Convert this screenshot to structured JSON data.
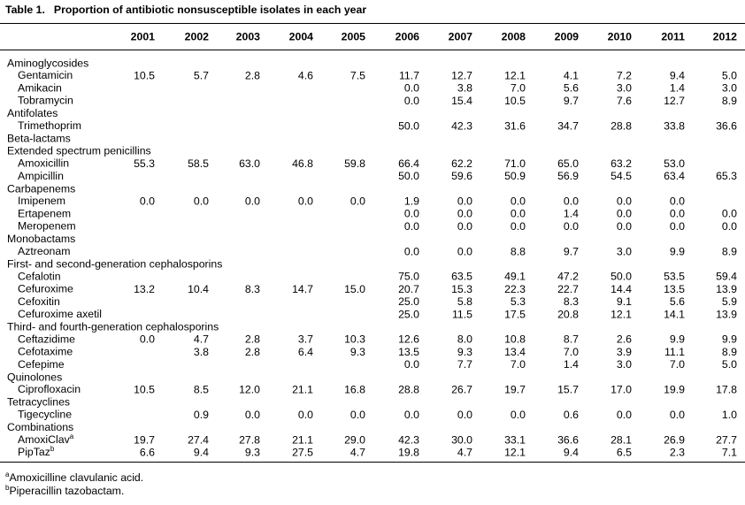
{
  "table": {
    "label": "Table 1.",
    "title": "Proportion of antibiotic nonsusceptible isolates in each year",
    "columns": [
      "2001",
      "2002",
      "2003",
      "2004",
      "2005",
      "2006",
      "2007",
      "2008",
      "2009",
      "2010",
      "2011",
      "2012"
    ],
    "groups": [
      {
        "name": "Aminoglycosides",
        "rows": [
          {
            "label": "Gentamicin",
            "values": [
              "10.5",
              "5.7",
              "2.8",
              "4.6",
              "7.5",
              "11.7",
              "12.7",
              "12.1",
              "4.1",
              "7.2",
              "9.4",
              "5.0"
            ]
          },
          {
            "label": "Amikacin",
            "values": [
              null,
              null,
              null,
              null,
              null,
              "0.0",
              "3.8",
              "7.0",
              "5.6",
              "3.0",
              "1.4",
              "3.0"
            ]
          },
          {
            "label": "Tobramycin",
            "values": [
              null,
              null,
              null,
              null,
              null,
              "0.0",
              "15.4",
              "10.5",
              "9.7",
              "7.6",
              "12.7",
              "8.9"
            ]
          }
        ]
      },
      {
        "name": "Antifolates",
        "rows": [
          {
            "label": "Trimethoprim",
            "values": [
              null,
              null,
              null,
              null,
              null,
              "50.0",
              "42.3",
              "31.6",
              "34.7",
              "28.8",
              "33.8",
              "36.6"
            ]
          }
        ]
      },
      {
        "name": "Beta-lactams",
        "rows": []
      },
      {
        "name": "Extended spectrum penicillins",
        "rows": [
          {
            "label": "Amoxicillin",
            "values": [
              "55.3",
              "58.5",
              "63.0",
              "46.8",
              "59.8",
              "66.4",
              "62.2",
              "71.0",
              "65.0",
              "63.2",
              "53.0",
              null
            ]
          },
          {
            "label": "Ampicillin",
            "values": [
              null,
              null,
              null,
              null,
              null,
              "50.0",
              "59.6",
              "50.9",
              "56.9",
              "54.5",
              "63.4",
              "65.3"
            ]
          }
        ]
      },
      {
        "name": "Carbapenems",
        "rows": [
          {
            "label": "Imipenem",
            "values": [
              "0.0",
              "0.0",
              "0.0",
              "0.0",
              "0.0",
              "1.9",
              "0.0",
              "0.0",
              "0.0",
              "0.0",
              "0.0",
              null
            ]
          },
          {
            "label": "Ertapenem",
            "values": [
              null,
              null,
              null,
              null,
              null,
              "0.0",
              "0.0",
              "0.0",
              "1.4",
              "0.0",
              "0.0",
              "0.0"
            ]
          },
          {
            "label": "Meropenem",
            "values": [
              null,
              null,
              null,
              null,
              null,
              "0.0",
              "0.0",
              "0.0",
              "0.0",
              "0.0",
              "0.0",
              "0.0"
            ]
          }
        ]
      },
      {
        "name": "Monobactams",
        "rows": [
          {
            "label": "Aztreonam",
            "values": [
              null,
              null,
              null,
              null,
              null,
              "0.0",
              "0.0",
              "8.8",
              "9.7",
              "3.0",
              "9.9",
              "8.9"
            ]
          }
        ]
      },
      {
        "name": "First- and second-generation cephalosporins",
        "rows": [
          {
            "label": "Cefalotin",
            "values": [
              null,
              null,
              null,
              null,
              null,
              "75.0",
              "63.5",
              "49.1",
              "47.2",
              "50.0",
              "53.5",
              "59.4"
            ]
          },
          {
            "label": "Cefuroxime",
            "values": [
              "13.2",
              "10.4",
              "8.3",
              "14.7",
              "15.0",
              "20.7",
              "15.3",
              "22.3",
              "22.7",
              "14.4",
              "13.5",
              "13.9"
            ]
          },
          {
            "label": "Cefoxitin",
            "values": [
              null,
              null,
              null,
              null,
              null,
              "25.0",
              "5.8",
              "5.3",
              "8.3",
              "9.1",
              "5.6",
              "5.9"
            ]
          },
          {
            "label": "Cefuroxime axetil",
            "values": [
              null,
              null,
              null,
              null,
              null,
              "25.0",
              "11.5",
              "17.5",
              "20.8",
              "12.1",
              "14.1",
              "13.9"
            ]
          }
        ]
      },
      {
        "name": "Third- and fourth-generation cephalosporins",
        "rows": [
          {
            "label": "Ceftazidime",
            "values": [
              "0.0",
              "4.7",
              "2.8",
              "3.7",
              "10.3",
              "12.6",
              "8.0",
              "10.8",
              "8.7",
              "2.6",
              "9.9",
              "9.9"
            ]
          },
          {
            "label": "Cefotaxime",
            "values": [
              null,
              "3.8",
              "2.8",
              "6.4",
              "9.3",
              "13.5",
              "9.3",
              "13.4",
              "7.0",
              "3.9",
              "11.1",
              "8.9"
            ]
          },
          {
            "label": "Cefepime",
            "values": [
              null,
              null,
              null,
              null,
              null,
              "0.0",
              "7.7",
              "7.0",
              "1.4",
              "3.0",
              "7.0",
              "5.0"
            ]
          }
        ]
      },
      {
        "name": "Quinolones",
        "rows": [
          {
            "label": "Ciprofloxacin",
            "values": [
              "10.5",
              "8.5",
              "12.0",
              "21.1",
              "16.8",
              "28.8",
              "26.7",
              "19.7",
              "15.7",
              "17.0",
              "19.9",
              "17.8"
            ]
          }
        ]
      },
      {
        "name": "Tetracyclines",
        "rows": [
          {
            "label": "Tigecycline",
            "values": [
              null,
              "0.9",
              "0.0",
              "0.0",
              "0.0",
              "0.0",
              "0.0",
              "0.0",
              "0.6",
              "0.0",
              "0.0",
              "1.0"
            ]
          }
        ]
      },
      {
        "name": "Combinations",
        "rows": [
          {
            "label": "AmoxiClav",
            "note": "a",
            "values": [
              "19.7",
              "27.4",
              "27.8",
              "21.1",
              "29.0",
              "42.3",
              "30.0",
              "33.1",
              "36.6",
              "28.1",
              "26.9",
              "27.7"
            ]
          },
          {
            "label": "PipTaz",
            "note": "b",
            "values": [
              "6.6",
              "9.4",
              "9.3",
              "27.5",
              "4.7",
              "19.8",
              "4.7",
              "12.1",
              "9.4",
              "6.5",
              "2.3",
              "7.1"
            ]
          }
        ]
      }
    ],
    "footnotes": [
      {
        "mark": "a",
        "text": "Amoxicilline clavulanic acid."
      },
      {
        "mark": "b",
        "text": "Piperacillin tazobactam."
      }
    ]
  }
}
